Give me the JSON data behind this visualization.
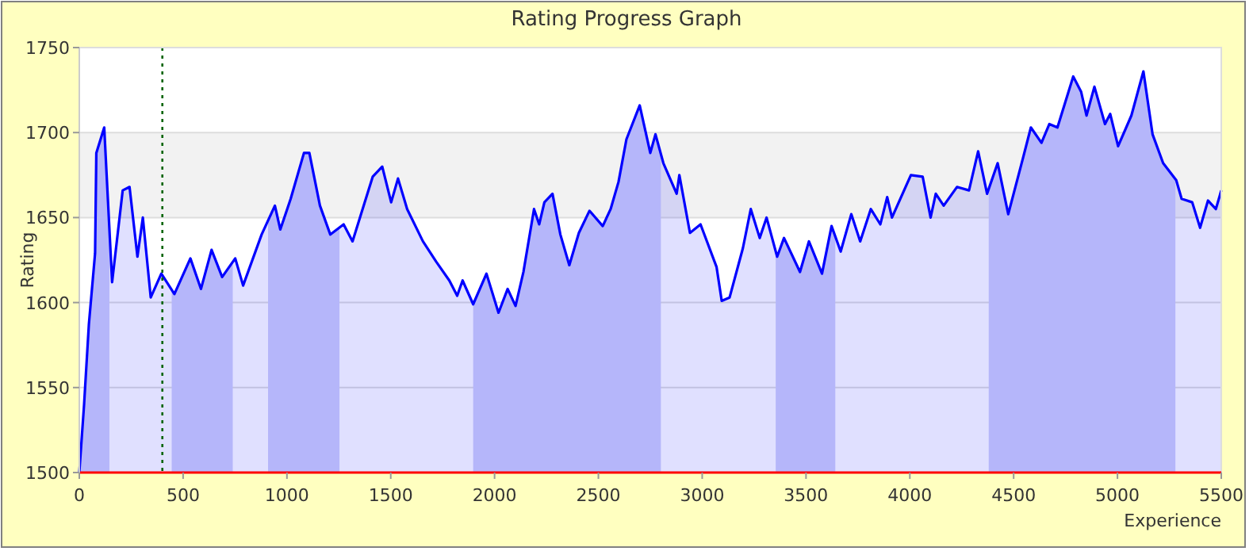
{
  "chart_data": {
    "type": "area",
    "title": "Rating Progress Graph",
    "xlabel": "Experience",
    "ylabel": "Rating",
    "xlim": [
      0,
      5500
    ],
    "xticks": [
      0,
      500,
      1000,
      1500,
      2000,
      2500,
      3000,
      3500,
      4000,
      4500,
      5000,
      5500
    ],
    "ylim": [
      1500,
      1750
    ],
    "yticks": [
      1500,
      1550,
      1600,
      1650,
      1700,
      1750
    ],
    "grid": "y",
    "series": [
      {
        "color": "#0000ff",
        "x": [
          0,
          23,
          46,
          76,
          82,
          120,
          158,
          209,
          242,
          280,
          306,
          344,
          395,
          458,
          535,
          586,
          637,
          688,
          751,
          789,
          878,
          942,
          968,
          1018,
          1082,
          1108,
          1159,
          1209,
          1273,
          1316,
          1413,
          1459,
          1502,
          1535,
          1579,
          1655,
          1719,
          1782,
          1820,
          1846,
          1897,
          1961,
          2019,
          2063,
          2101,
          2139,
          2190,
          2215,
          2240,
          2279,
          2317,
          2360,
          2406,
          2457,
          2521,
          2559,
          2597,
          2635,
          2699,
          2750,
          2775,
          2813,
          2877,
          2890,
          2941,
          2992,
          3069,
          3094,
          3132,
          3196,
          3234,
          3277,
          3310,
          3361,
          3394,
          3471,
          3514,
          3577,
          3623,
          3667,
          3718,
          3761,
          3812,
          3858,
          3891,
          3914,
          4005,
          4062,
          4100,
          4125,
          4163,
          4227,
          4285,
          4329,
          4372,
          4423,
          4474,
          4545,
          4583,
          4634,
          4672,
          4711,
          4787,
          4825,
          4851,
          4889,
          4940,
          4965,
          5003,
          5067,
          5125,
          5169,
          5220,
          5283,
          5309,
          5360,
          5398,
          5436,
          5474,
          5500
        ],
        "values": [
          1500,
          1540,
          1587,
          1629,
          1688,
          1703,
          1612,
          1666,
          1668,
          1627,
          1650,
          1603,
          1617,
          1605,
          1626,
          1608,
          1631,
          1615,
          1626,
          1610,
          1640,
          1657,
          1643,
          1661,
          1688,
          1688,
          1657,
          1640,
          1646,
          1636,
          1674,
          1680,
          1659,
          1673,
          1655,
          1636,
          1624,
          1613,
          1604,
          1613,
          1599,
          1617,
          1594,
          1608,
          1598,
          1618,
          1655,
          1646,
          1659,
          1664,
          1640,
          1622,
          1641,
          1654,
          1645,
          1655,
          1671,
          1696,
          1716,
          1688,
          1699,
          1682,
          1664,
          1675,
          1641,
          1646,
          1621,
          1601,
          1603,
          1632,
          1655,
          1638,
          1650,
          1627,
          1638,
          1618,
          1636,
          1617,
          1645,
          1630,
          1652,
          1636,
          1655,
          1646,
          1662,
          1650,
          1675,
          1674,
          1650,
          1664,
          1657,
          1668,
          1666,
          1689,
          1664,
          1682,
          1652,
          1685,
          1703,
          1694,
          1705,
          1703,
          1733,
          1724,
          1710,
          1727,
          1705,
          1711,
          1692,
          1710,
          1736,
          1699,
          1682,
          1672,
          1661,
          1659,
          1644,
          1660,
          1655,
          1666
        ]
      }
    ],
    "bands": [
      {
        "axis": "y",
        "from": 1650,
        "to": 1700,
        "color": "#f2f2f2"
      },
      {
        "axis": "x",
        "from": 0,
        "to": 145,
        "color": "#cfd0fa"
      },
      {
        "axis": "x",
        "from": 445,
        "to": 739,
        "color": "#cfd0fa"
      },
      {
        "axis": "x",
        "from": 909,
        "to": 1253,
        "color": "#cfd0fa"
      },
      {
        "axis": "x",
        "from": 1897,
        "to": 2801,
        "color": "#cfd0fa"
      },
      {
        "axis": "x",
        "from": 3354,
        "to": 3641,
        "color": "#cfd0fa"
      },
      {
        "axis": "x",
        "from": 4380,
        "to": 5279,
        "color": "#cfd0fa"
      }
    ],
    "ref_lines": [
      {
        "axis": "x",
        "value": 400,
        "color": "#006400",
        "line_style": "dotted"
      }
    ]
  }
}
